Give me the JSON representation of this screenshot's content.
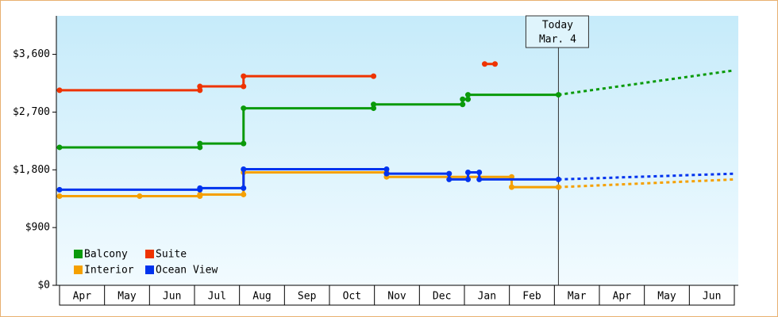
{
  "chart_data": {
    "type": "step-line",
    "xlim": [
      0,
      15
    ],
    "xticks": [
      {
        "value": 0.5,
        "label": "Apr"
      },
      {
        "value": 1.5,
        "label": "May"
      },
      {
        "value": 2.5,
        "label": "Jun"
      },
      {
        "value": 3.5,
        "label": "Jul"
      },
      {
        "value": 4.5,
        "label": "Aug"
      },
      {
        "value": 5.5,
        "label": "Sep"
      },
      {
        "value": 6.5,
        "label": "Oct"
      },
      {
        "value": 7.5,
        "label": "Nov"
      },
      {
        "value": 8.5,
        "label": "Dec"
      },
      {
        "value": 9.5,
        "label": "Jan"
      },
      {
        "value": 10.5,
        "label": "Feb"
      },
      {
        "value": 11.5,
        "label": "Mar"
      },
      {
        "value": 12.5,
        "label": "Apr"
      },
      {
        "value": 13.5,
        "label": "May"
      },
      {
        "value": 14.5,
        "label": "Jun"
      }
    ],
    "ylim": [
      0,
      4200
    ],
    "yticks": [
      {
        "value": 0,
        "label": "$0"
      },
      {
        "value": 900,
        "label": "$900"
      },
      {
        "value": 1800,
        "label": "$1,800"
      },
      {
        "value": 2700,
        "label": "$2,700"
      },
      {
        "value": 3600,
        "label": "$3,600"
      }
    ],
    "legend": "lower-left",
    "annotation": {
      "x": 11.09,
      "lines": [
        "Today",
        "Mar. 4"
      ]
    },
    "series": [
      {
        "name": "Balcony",
        "color": "#0a9a0a",
        "x": [
          0,
          3.12,
          3.12,
          4.09,
          4.09,
          6.98,
          6.98,
          8.96,
          8.96,
          9.08,
          9.08,
          11.09
        ],
        "values": [
          2150,
          2150,
          2210,
          2210,
          2760,
          2760,
          2820,
          2820,
          2900,
          2900,
          2970,
          2970
        ],
        "forecast": {
          "x": [
            11.09,
            15
          ],
          "values": [
            2970,
            3350
          ]
        }
      },
      {
        "name": "Suite",
        "color": "#ee3300",
        "x": [
          0,
          3.12,
          3.12,
          4.09,
          4.09,
          6.98,
          null,
          9.45,
          9.68
        ],
        "values": [
          3040,
          3040,
          3100,
          3100,
          3260,
          3260,
          null,
          3450,
          3450
        ]
      },
      {
        "name": "Interior",
        "color": "#f5a000",
        "x": [
          0,
          1.78,
          3.12,
          3.12,
          4.09,
          4.09,
          7.27,
          7.27,
          10.05,
          10.05,
          11.09
        ],
        "values": [
          1390,
          1390,
          1390,
          1415,
          1415,
          1760,
          1760,
          1690,
          1690,
          1530,
          1530
        ],
        "forecast": {
          "x": [
            11.09,
            15
          ],
          "values": [
            1530,
            1650
          ]
        }
      },
      {
        "name": "Ocean View",
        "color": "#0033ee",
        "x": [
          0,
          3.12,
          3.12,
          4.09,
          4.09,
          7.27,
          7.27,
          8.66,
          8.66,
          9.08,
          9.08,
          9.33,
          9.33,
          11.09
        ],
        "values": [
          1490,
          1490,
          1515,
          1515,
          1810,
          1810,
          1740,
          1740,
          1650,
          1650,
          1760,
          1760,
          1650,
          1650
        ],
        "forecast": {
          "x": [
            11.09,
            15
          ],
          "values": [
            1650,
            1740
          ]
        }
      }
    ]
  }
}
